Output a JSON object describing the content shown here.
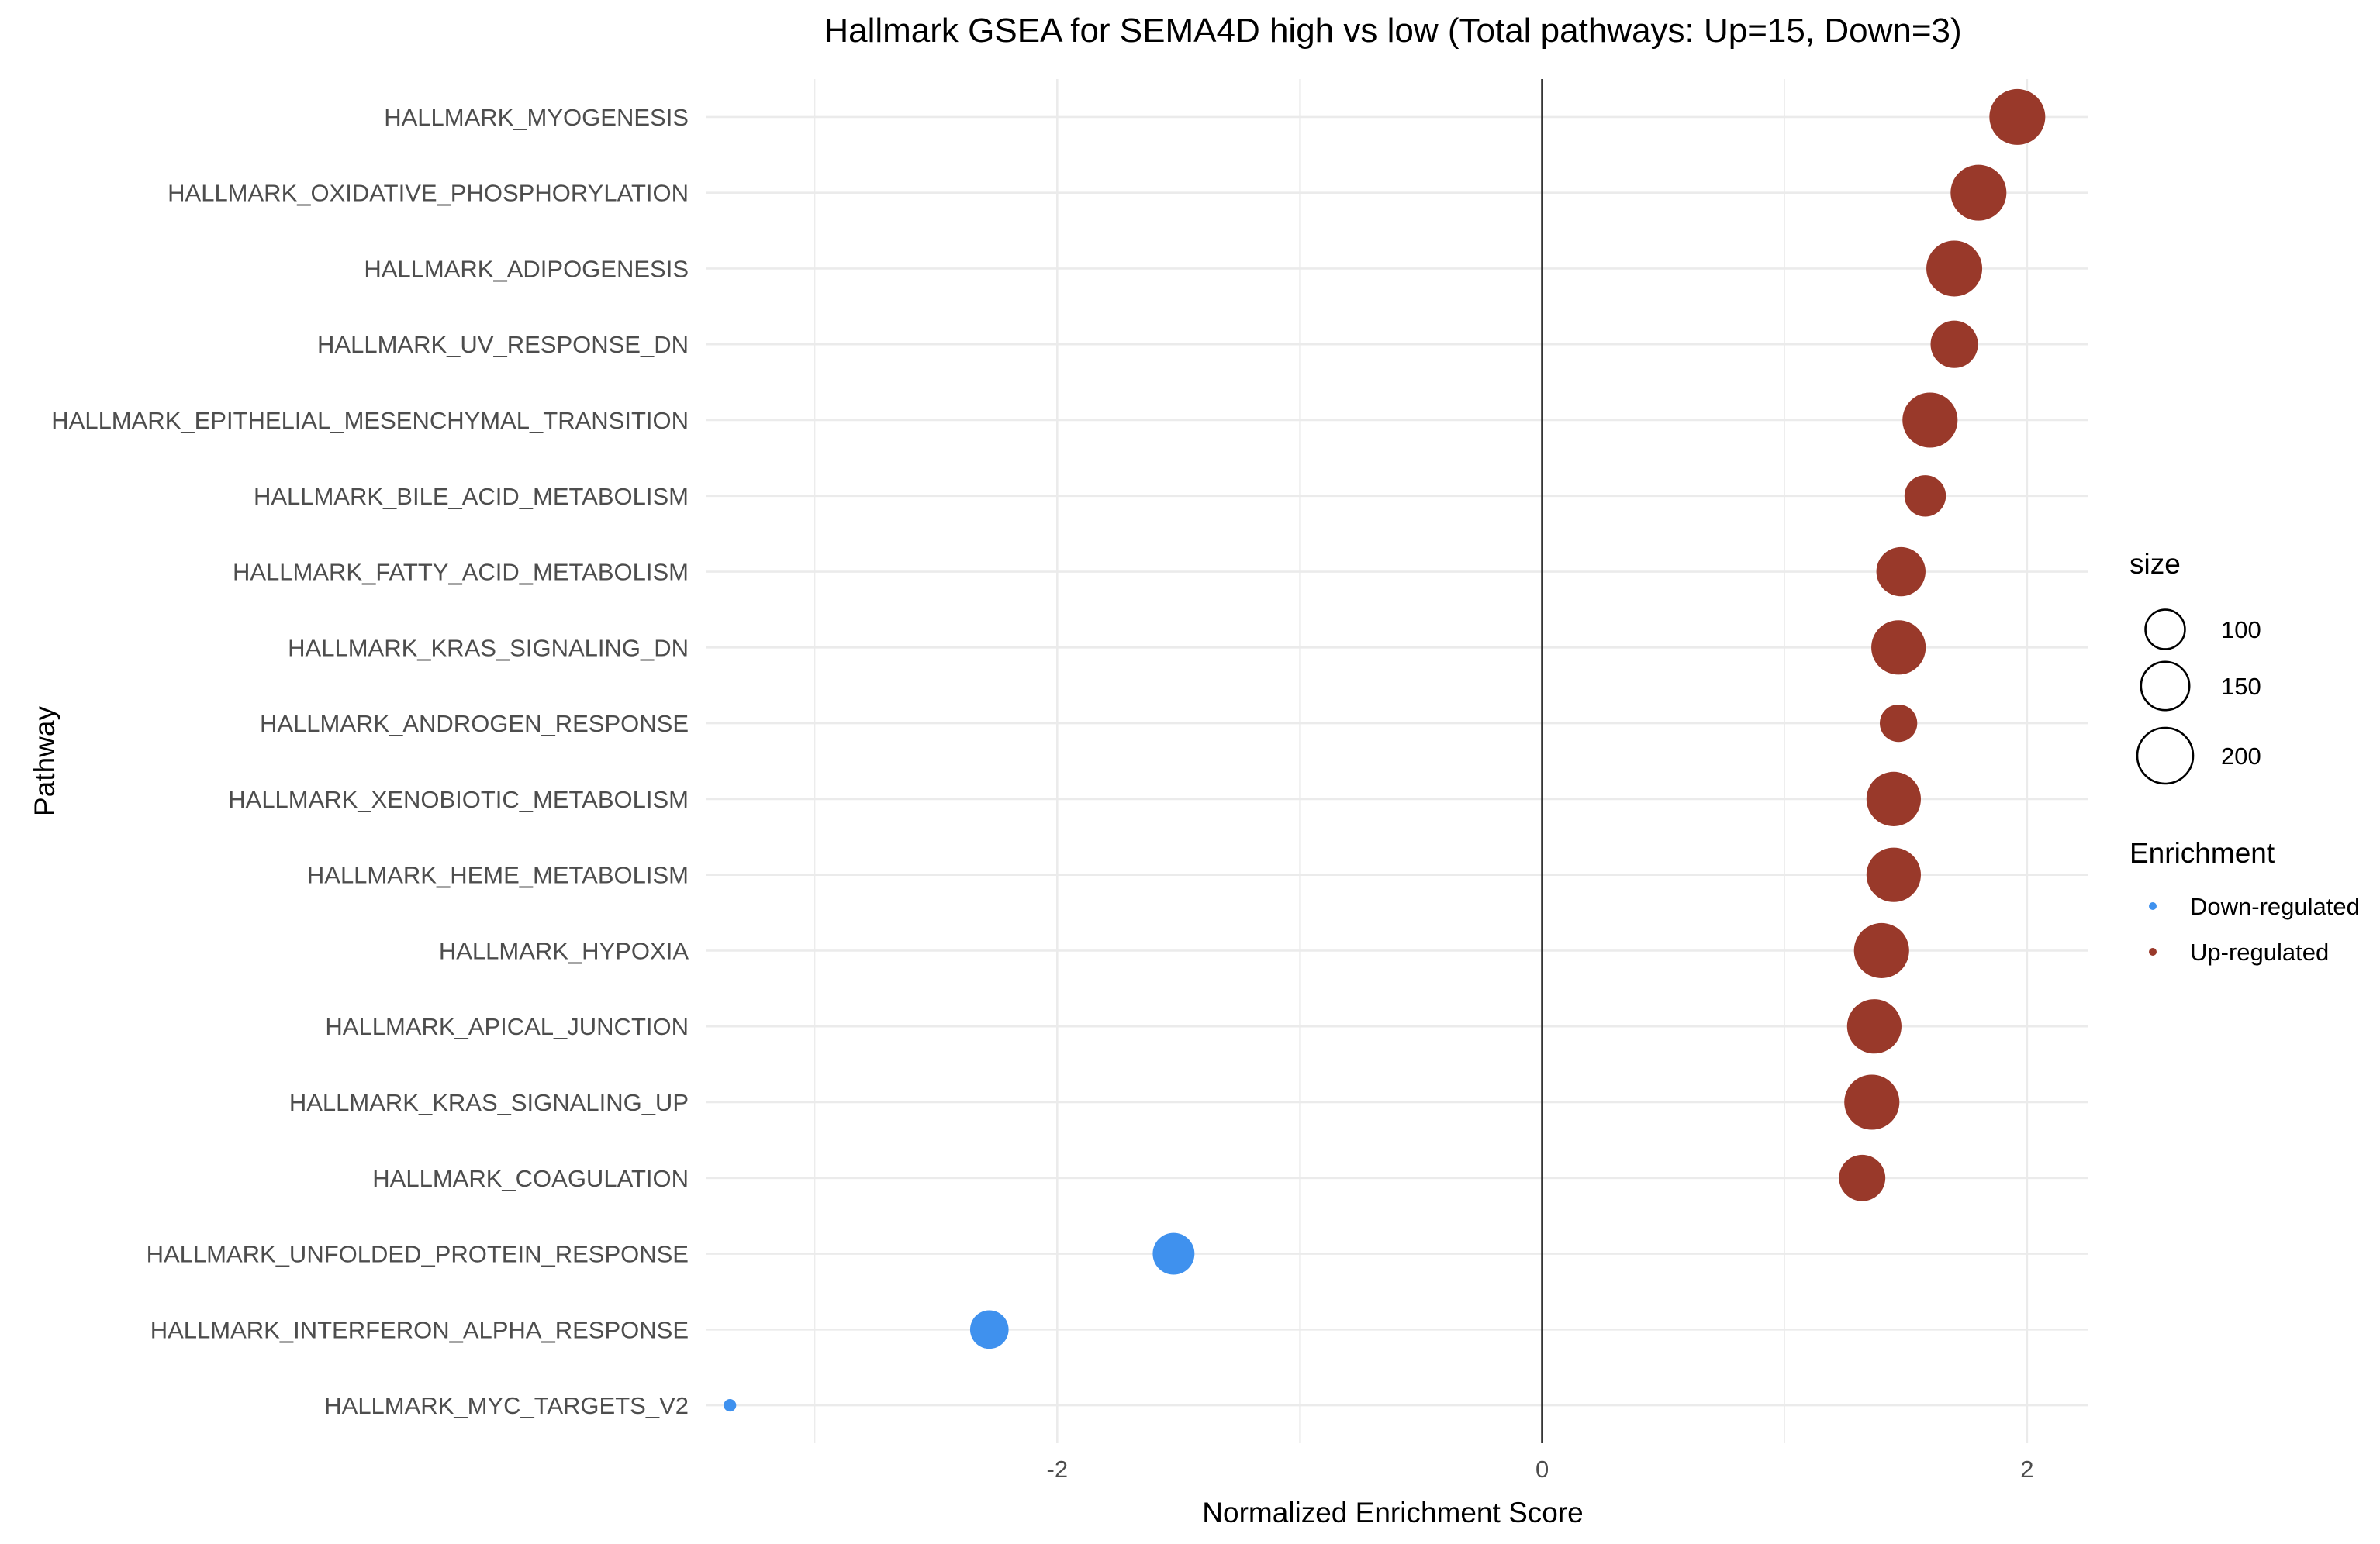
{
  "chart_data": {
    "type": "scatter",
    "title": "Hallmark GSEA for SEMA4D high vs low (Total pathways: Up=15, Down=3)",
    "xlabel": "Normalized Enrichment Score",
    "ylabel": "Pathway",
    "xlim": [
      -3.45,
      2.25
    ],
    "x_ticks": [
      -2,
      0,
      2
    ],
    "x_tick_labels": [
      "-2",
      "0",
      "2"
    ],
    "grid": true,
    "reference_line_x": 0,
    "legend_position": "right",
    "colors": {
      "Down-regulated": "#3f91ee",
      "Up-regulated": "#99392a"
    },
    "size_legend": {
      "title": "size",
      "entries": [
        {
          "label": "100",
          "value": 100
        },
        {
          "label": "150",
          "value": 150
        },
        {
          "label": "200",
          "value": 200
        }
      ]
    },
    "color_legend": {
      "title": "Enrichment",
      "entries": [
        "Down-regulated",
        "Up-regulated"
      ]
    },
    "points": [
      {
        "pathway": "HALLMARK_MYOGENESIS",
        "nes": 1.96,
        "size": 200,
        "enrichment": "Up-regulated"
      },
      {
        "pathway": "HALLMARK_OXIDATIVE_PHOSPHORYLATION",
        "nes": 1.8,
        "size": 200,
        "enrichment": "Up-regulated"
      },
      {
        "pathway": "HALLMARK_ADIPOGENESIS",
        "nes": 1.7,
        "size": 200,
        "enrichment": "Up-regulated"
      },
      {
        "pathway": "HALLMARK_UV_RESPONSE_DN",
        "nes": 1.7,
        "size": 144,
        "enrichment": "Up-regulated"
      },
      {
        "pathway": "HALLMARK_EPITHELIAL_MESENCHYMAL_TRANSITION",
        "nes": 1.6,
        "size": 195,
        "enrichment": "Up-regulated"
      },
      {
        "pathway": "HALLMARK_BILE_ACID_METABOLISM",
        "nes": 1.58,
        "size": 110,
        "enrichment": "Up-regulated"
      },
      {
        "pathway": "HALLMARK_FATTY_ACID_METABOLISM",
        "nes": 1.48,
        "size": 155,
        "enrichment": "Up-regulated"
      },
      {
        "pathway": "HALLMARK_KRAS_SIGNALING_DN",
        "nes": 1.47,
        "size": 190,
        "enrichment": "Up-regulated"
      },
      {
        "pathway": "HALLMARK_ANDROGEN_RESPONSE",
        "nes": 1.47,
        "size": 90,
        "enrichment": "Up-regulated"
      },
      {
        "pathway": "HALLMARK_XENOBIOTIC_METABOLISM",
        "nes": 1.45,
        "size": 190,
        "enrichment": "Up-regulated"
      },
      {
        "pathway": "HALLMARK_HEME_METABOLISM",
        "nes": 1.45,
        "size": 190,
        "enrichment": "Up-regulated"
      },
      {
        "pathway": "HALLMARK_HYPOXIA",
        "nes": 1.4,
        "size": 195,
        "enrichment": "Up-regulated"
      },
      {
        "pathway": "HALLMARK_APICAL_JUNCTION",
        "nes": 1.37,
        "size": 190,
        "enrichment": "Up-regulated"
      },
      {
        "pathway": "HALLMARK_KRAS_SIGNALING_UP",
        "nes": 1.36,
        "size": 195,
        "enrichment": "Up-regulated"
      },
      {
        "pathway": "HALLMARK_COAGULATION",
        "nes": 1.32,
        "size": 138,
        "enrichment": "Up-regulated"
      },
      {
        "pathway": "HALLMARK_UNFOLDED_PROTEIN_RESPONSE",
        "nes": -1.52,
        "size": 112,
        "enrichment": "Down-regulated"
      },
      {
        "pathway": "HALLMARK_INTERFERON_ALPHA_RESPONSE",
        "nes": -2.28,
        "size": 95,
        "enrichment": "Down-regulated"
      },
      {
        "pathway": "HALLMARK_MYC_TARGETS_V2",
        "nes": -3.35,
        "size": 10,
        "enrichment": "Down-regulated"
      }
    ]
  }
}
